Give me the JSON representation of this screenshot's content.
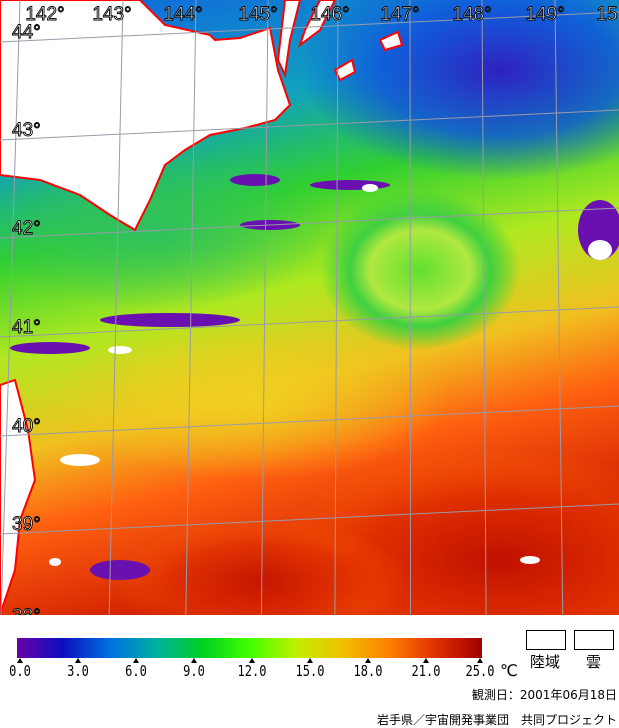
{
  "map": {
    "longitude_labels": [
      "142°",
      "143°",
      "144°",
      "145°",
      "146°",
      "147°",
      "148°",
      "149°",
      "15"
    ],
    "latitude_labels": [
      "44°",
      "43°",
      "42°",
      "41°",
      "40°",
      "39°",
      "38°"
    ],
    "colors": {
      "land_fill": "#ffffff",
      "coastline": "#ff0000",
      "cloud": "#ffffff",
      "grid": "#9a9aaa"
    }
  },
  "legend": {
    "scale_colors": [
      "#6a00a8",
      "#0a10c0",
      "#0070e0",
      "#00b0a0",
      "#00d020",
      "#40ff00",
      "#c0f000",
      "#f0c000",
      "#ff8000",
      "#e03000",
      "#a00000"
    ],
    "ticks": [
      "0.0",
      "3.0",
      "6.0",
      "9.0",
      "12.0",
      "15.0",
      "18.0",
      "21.0",
      "25.0"
    ],
    "unit": "℃",
    "land_label": "陸域",
    "cloud_label": "雲"
  },
  "observation_date": "観測日：2001年06月18日",
  "credit": "岩手県／宇宙開発事業団　共同プロジェクト"
}
